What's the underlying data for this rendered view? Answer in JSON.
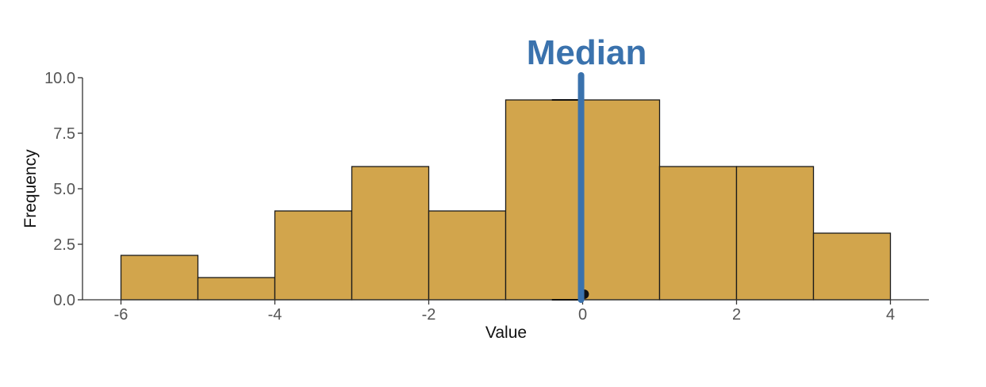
{
  "chart_data": {
    "type": "bar",
    "subtype": "histogram",
    "xlabel": "Value",
    "ylabel": "Frequency",
    "xlim": [
      -6.5,
      4.5
    ],
    "ylim": [
      0,
      10
    ],
    "x_ticks": [
      -6,
      -4,
      -2,
      0,
      2,
      4
    ],
    "x_tick_labels": [
      "-6",
      "-4",
      "-2",
      "0",
      "2",
      "4"
    ],
    "y_ticks": [
      0,
      2.5,
      5,
      7.5,
      10
    ],
    "y_tick_labels": [
      "0.0",
      "2.5",
      "5.0",
      "7.5",
      "10.0"
    ],
    "bins": [
      {
        "start": -6,
        "end": -5,
        "count": 2
      },
      {
        "start": -5,
        "end": -4,
        "count": 1
      },
      {
        "start": -4,
        "end": -3,
        "count": 4
      },
      {
        "start": -3,
        "end": -2,
        "count": 6
      },
      {
        "start": -2,
        "end": -1,
        "count": 4
      },
      {
        "start": -1,
        "end": 0,
        "count": 9
      },
      {
        "start": 0,
        "end": 1,
        "count": 9
      },
      {
        "start": 1,
        "end": 2,
        "count": 6
      },
      {
        "start": 2,
        "end": 3,
        "count": 6
      },
      {
        "start": 3,
        "end": 4,
        "count": 3
      }
    ],
    "grid": false,
    "bar_color": "#D2A54C",
    "bar_edge_color": "#1a1a1a",
    "annotation": {
      "label": "Median",
      "x": -0.02,
      "color": "#3A72AD"
    },
    "boxplot": {
      "whisker_low": -0.4,
      "whisker_high": 0.0,
      "cap_y_high": 9,
      "point_x": 0.02,
      "point_y": 0.25
    }
  }
}
